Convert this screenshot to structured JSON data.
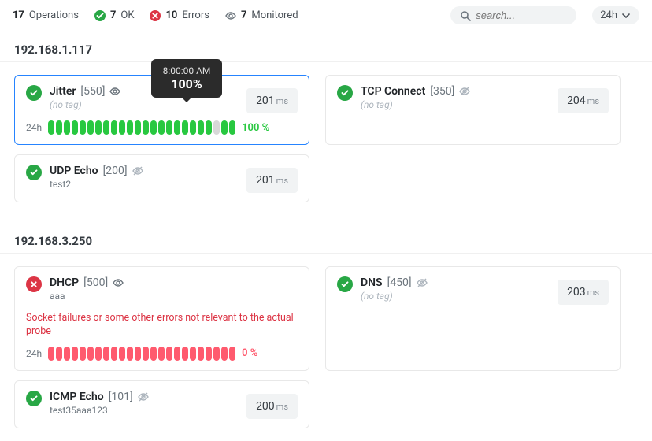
{
  "topbar": {
    "ops_count": 17,
    "ops_label": "Operations",
    "ok_count": 7,
    "ok_label": "OK",
    "err_count": 10,
    "err_label": "Errors",
    "mon_count": 7,
    "mon_label": "Monitored",
    "search_placeholder": "search...",
    "time_range": "24h"
  },
  "tooltip": {
    "time": "8:00:00 AM",
    "value": "100%"
  },
  "group1": {
    "ip": "192.168.1.117",
    "jitter": {
      "name": "Jitter",
      "id": "[550]",
      "tag": "(no tag)",
      "latency": "201",
      "unit": "ms",
      "bar_label": "24h",
      "pct": "100 %",
      "bars": [
        "ok",
        "ok",
        "ok",
        "ok",
        "ok",
        "ok",
        "ok",
        "ok",
        "ok",
        "ok",
        "ok",
        "ok",
        "ok",
        "ok",
        "ok",
        "ok",
        "ok",
        "ok",
        "ok",
        "ok",
        "ok",
        "gap",
        "ok",
        "ok"
      ],
      "bar_color_ok": "#28c840",
      "bar_color_gap": "#d8d8d8"
    },
    "tcp": {
      "name": "TCP Connect",
      "id": "[350]",
      "tag": "(no tag)",
      "latency": "204",
      "unit": "ms"
    },
    "udp": {
      "name": "UDP Echo",
      "id": "[200]",
      "tag": "test2",
      "latency": "201",
      "unit": "ms"
    }
  },
  "group2": {
    "ip": "192.168.3.250",
    "dhcp": {
      "name": "DHCP",
      "id": "[500]",
      "tag": "aaa",
      "error": "Socket failures or some other errors not relevant to the actual probe",
      "bar_label": "24h",
      "pct": "0 %",
      "bars": [
        "err",
        "err",
        "err",
        "err",
        "err",
        "err",
        "err",
        "err",
        "err",
        "err",
        "err",
        "err",
        "err",
        "err",
        "err",
        "err",
        "err",
        "err",
        "err",
        "err",
        "err",
        "err",
        "err",
        "err"
      ],
      "bar_color_err": "#ff5a6e"
    },
    "dns": {
      "name": "DNS",
      "id": "[450]",
      "tag": "(no tag)",
      "latency": "203",
      "unit": "ms"
    },
    "icmp": {
      "name": "ICMP Echo",
      "id": "[101]",
      "tag": "test35aaa123",
      "latency": "200",
      "unit": "ms"
    }
  },
  "colors": {
    "ok_green": "#28a745",
    "err_red": "#dc3545",
    "bar_ok": "#28c840",
    "bar_err": "#ff5a6e",
    "bar_gap": "#d8d8d8",
    "border_selected": "#2684ff",
    "pill_bg": "#f1f3f4",
    "tooltip_bg": "#2b2b2b"
  }
}
